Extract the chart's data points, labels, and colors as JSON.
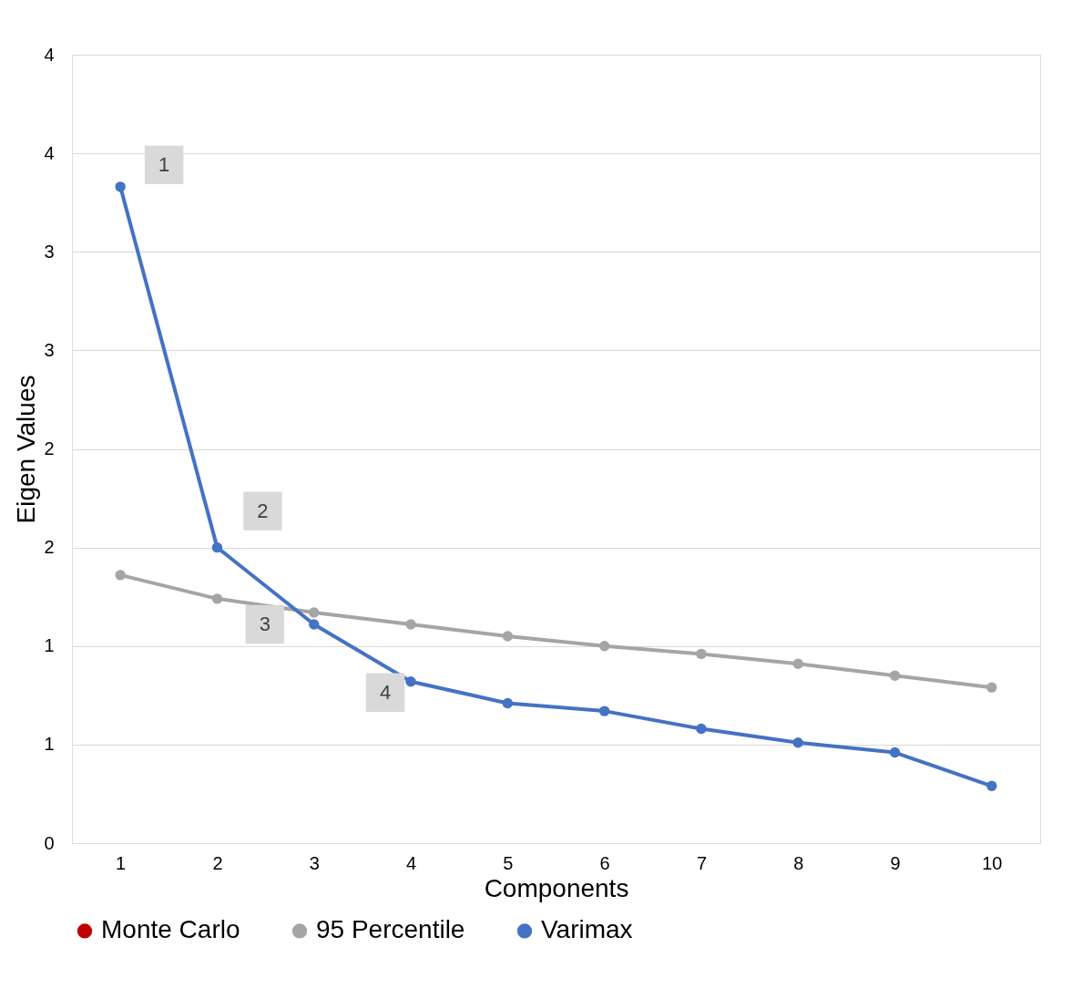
{
  "chart_data": {
    "type": "line",
    "xlabel": "Components",
    "ylabel": "Eigen Values",
    "categories": [
      "1",
      "2",
      "3",
      "4",
      "5",
      "6",
      "7",
      "8",
      "9",
      "10"
    ],
    "series": [
      {
        "name": "Monte Carlo",
        "color": "#c00000",
        "values": [
          null,
          null,
          null,
          null,
          null,
          null,
          null,
          null,
          null,
          null
        ]
      },
      {
        "name": "95 Percentile",
        "color": "#a5a5a5",
        "values": [
          1.36,
          1.24,
          1.17,
          1.11,
          1.05,
          1.0,
          0.96,
          0.91,
          0.85,
          0.79
        ]
      },
      {
        "name": "Varimax",
        "color": "#4472c4",
        "values": [
          3.33,
          1.5,
          1.11,
          0.82,
          0.71,
          0.67,
          0.58,
          0.51,
          0.46,
          0.29
        ]
      }
    ],
    "ylim": [
      0,
      4
    ],
    "yticks": [
      0,
      {
        "value": 0.5,
        "label": "1"
      },
      1,
      {
        "value": 1.5,
        "label": "2"
      },
      2,
      {
        "value": 2.5,
        "label": "3"
      },
      3,
      {
        "value": 3.5,
        "label": "4"
      },
      4
    ],
    "annotations": [
      {
        "text": "1",
        "x": "1",
        "y": 3.33
      },
      {
        "text": "2",
        "x": "2",
        "y": 1.5
      },
      {
        "text": "3",
        "x": "3",
        "y": 1.11
      },
      {
        "text": "4",
        "x": "4",
        "y": 0.82
      }
    ],
    "grid": "y",
    "legend": "bottom",
    "marker": "circle",
    "line_style": "solid"
  }
}
